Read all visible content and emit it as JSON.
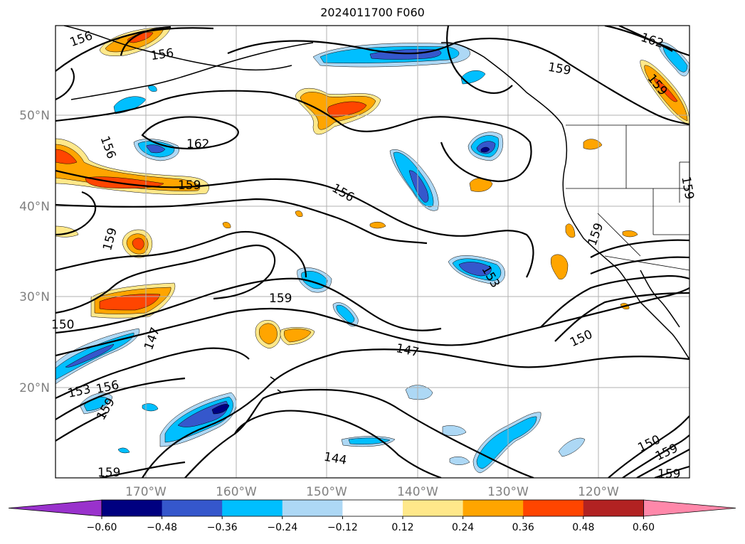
{
  "title": "2024011700 F060",
  "lat_labels": [
    "50°N",
    "40°N",
    "30°N",
    "20°N"
  ],
  "lon_labels": [
    "170°W",
    "160°W",
    "150°W",
    "140°W",
    "130°W",
    "120°W"
  ],
  "contour_labels": [
    "156",
    "156",
    "162",
    "159",
    "162",
    "156",
    "159",
    "156",
    "159",
    "159",
    "159",
    "159",
    "153",
    "147",
    "150",
    "147",
    "153",
    "156",
    "159",
    "144",
    "159",
    "159",
    "150",
    "159",
    "159",
    "150"
  ],
  "colorbar": {
    "tick_labels": [
      "−0.60",
      "−0.48",
      "−0.36",
      "−0.24",
      "−0.12",
      "0.12",
      "0.24",
      "0.36",
      "0.48",
      "0.60"
    ],
    "colors": [
      "#9932cc",
      "#000080",
      "#3557cc",
      "#00bfff",
      "#add8f5",
      "#ffffff",
      "#ffe88a",
      "#ffa500",
      "#ff4500",
      "#b22222",
      "#ff88aa"
    ]
  }
}
